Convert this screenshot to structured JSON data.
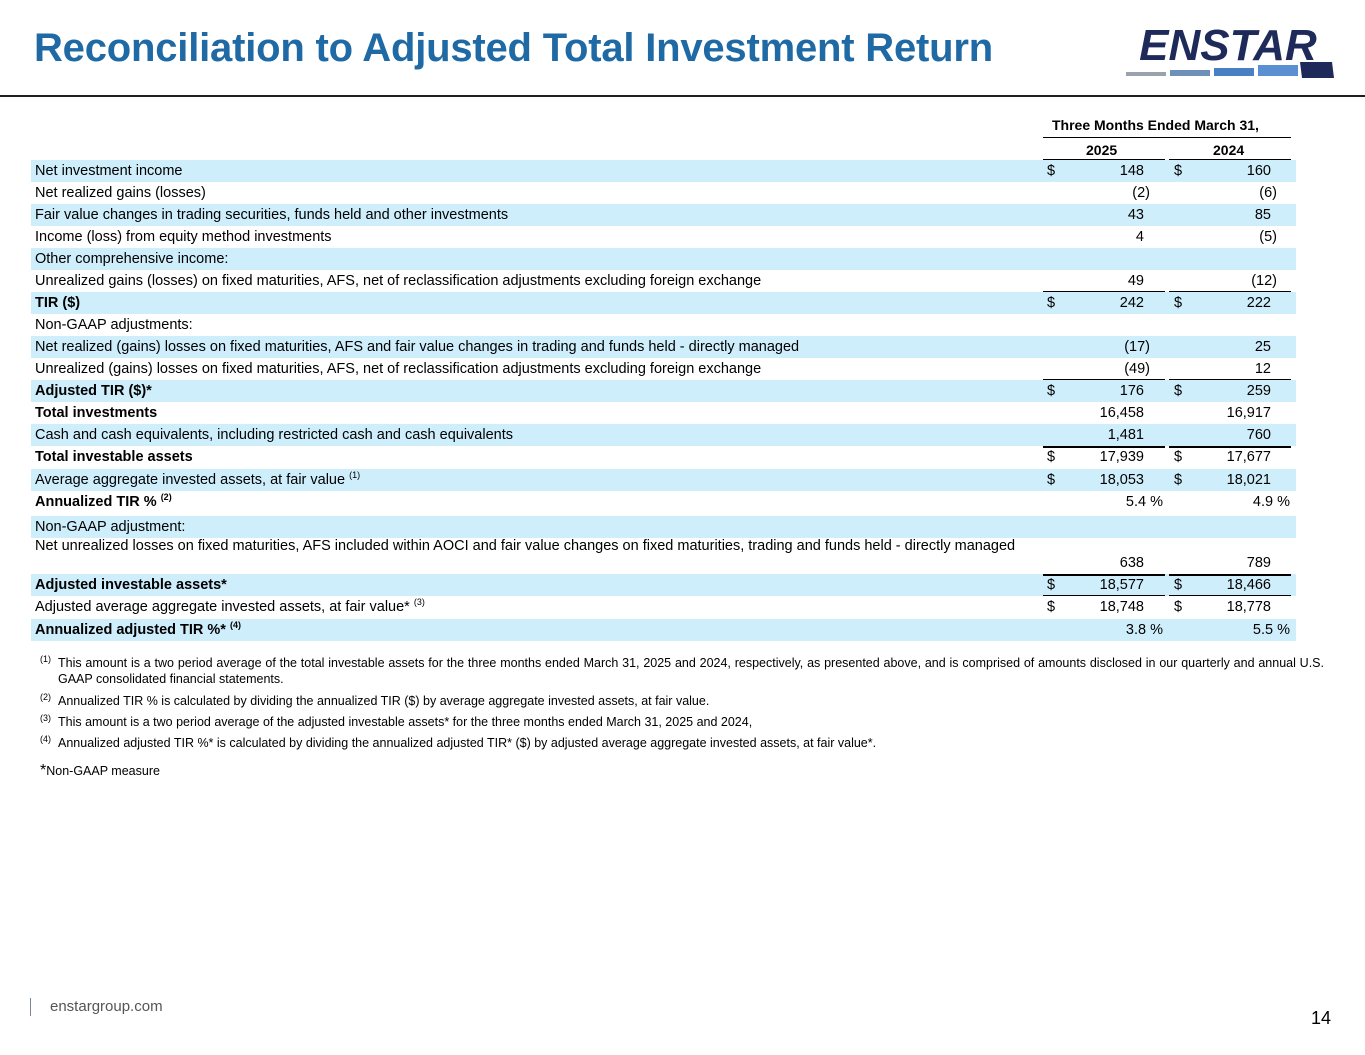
{
  "title": "Reconciliation to Adjusted Total Investment Return",
  "logo_text": "ENSTAR",
  "table": {
    "period_header": "Three Months Ended March 31,",
    "col1": "2025",
    "col2": "2024",
    "rows": [
      {
        "label": "Net investment income",
        "cur1": "$",
        "v1": "148",
        "cur2": "$",
        "v2": "160"
      },
      {
        "label": "Net realized gains (losses)",
        "v1": "(2)",
        "v2": "(6)"
      },
      {
        "label": "Fair value changes in trading securities, funds held and other investments",
        "v1": "43",
        "v2": "85"
      },
      {
        "label": "Income (loss) from equity method investments",
        "v1": "4",
        "v2": "(5)"
      },
      {
        "label": "Other comprehensive income:"
      },
      {
        "label": "Unrealized gains (losses) on fixed maturities, AFS, net of reclassification adjustments excluding foreign exchange",
        "v1": "49",
        "v2": "(12)"
      },
      {
        "label": "TIR ($)",
        "cur1": "$",
        "v1": "242",
        "cur2": "$",
        "v2": "222"
      },
      {
        "label": "Non-GAAP adjustments:"
      },
      {
        "label": "Net realized (gains) losses on fixed maturities, AFS and fair value changes in trading and funds held - directly managed",
        "v1": "(17)",
        "v2": "25"
      },
      {
        "label": "Unrealized (gains) losses on fixed maturities, AFS, net of reclassification adjustments excluding foreign exchange",
        "v1": "(49)",
        "v2": "12"
      },
      {
        "label": "Adjusted TIR ($)*",
        "cur1": "$",
        "v1": "176",
        "cur2": "$",
        "v2": "259"
      },
      {
        "label": "Total investments",
        "v1": "16,458",
        "v2": "16,917"
      },
      {
        "label": "Cash and cash equivalents, including restricted cash and cash equivalents",
        "v1": "1,481",
        "v2": "760"
      },
      {
        "label": "Total investable assets",
        "cur1": "$",
        "v1": "17,939",
        "cur2": "$",
        "v2": "17,677"
      },
      {
        "label": "Average aggregate invested assets, at fair value",
        "sup": "(1)",
        "cur1": "$",
        "v1": "18,053",
        "cur2": "$",
        "v2": "18,021"
      },
      {
        "label": "Annualized TIR %",
        "sup": "(2)",
        "v1": "5.4 %",
        "v2": "4.9 %"
      },
      {
        "label": "Non-GAAP adjustment:"
      },
      {
        "label": "Net unrealized losses on fixed maturities, AFS included within AOCI and fair value changes on fixed maturities, trading and funds held - directly managed",
        "v1": "638",
        "v2": "789"
      },
      {
        "label": "Adjusted investable assets*",
        "cur1": "$",
        "v1": "18,577",
        "cur2": "$",
        "v2": "18,466"
      },
      {
        "label": "Adjusted average aggregate invested assets, at fair value*",
        "sup": "(3)",
        "cur1": "$",
        "v1": "18,748",
        "cur2": "$",
        "v2": "18,778"
      },
      {
        "label": "Annualized adjusted TIR %*",
        "sup": "(4)",
        "v1": "3.8 %",
        "v2": "5.5 %"
      }
    ]
  },
  "footnotes": [
    {
      "mark": "(1)",
      "text": "This amount is a two period average of the total investable assets for the three months ended March 31, 2025 and 2024, respectively, as presented above, and is comprised of amounts disclosed in our quarterly and annual U.S. GAAP consolidated financial statements."
    },
    {
      "mark": "(2)",
      "text": "Annualized TIR % is calculated by dividing the annualized TIR ($) by average aggregate invested assets, at fair value."
    },
    {
      "mark": "(3)",
      "text": "This amount is a two period average of the adjusted investable assets* for the three months ended March 31, 2025 and 2024,"
    },
    {
      "mark": "(4)",
      "text": "Annualized adjusted TIR %* is calculated by dividing the annualized adjusted TIR* ($) by adjusted average aggregate invested assets, at fair value*."
    }
  ],
  "non_gaap_star": "*",
  "non_gaap_note": "Non-GAAP measure",
  "footer_site": "enstargroup.com",
  "page_number": "14",
  "colors": {
    "title": "#1f69a4",
    "shade": "#cfeefc",
    "logo": "#1e2a5a"
  }
}
